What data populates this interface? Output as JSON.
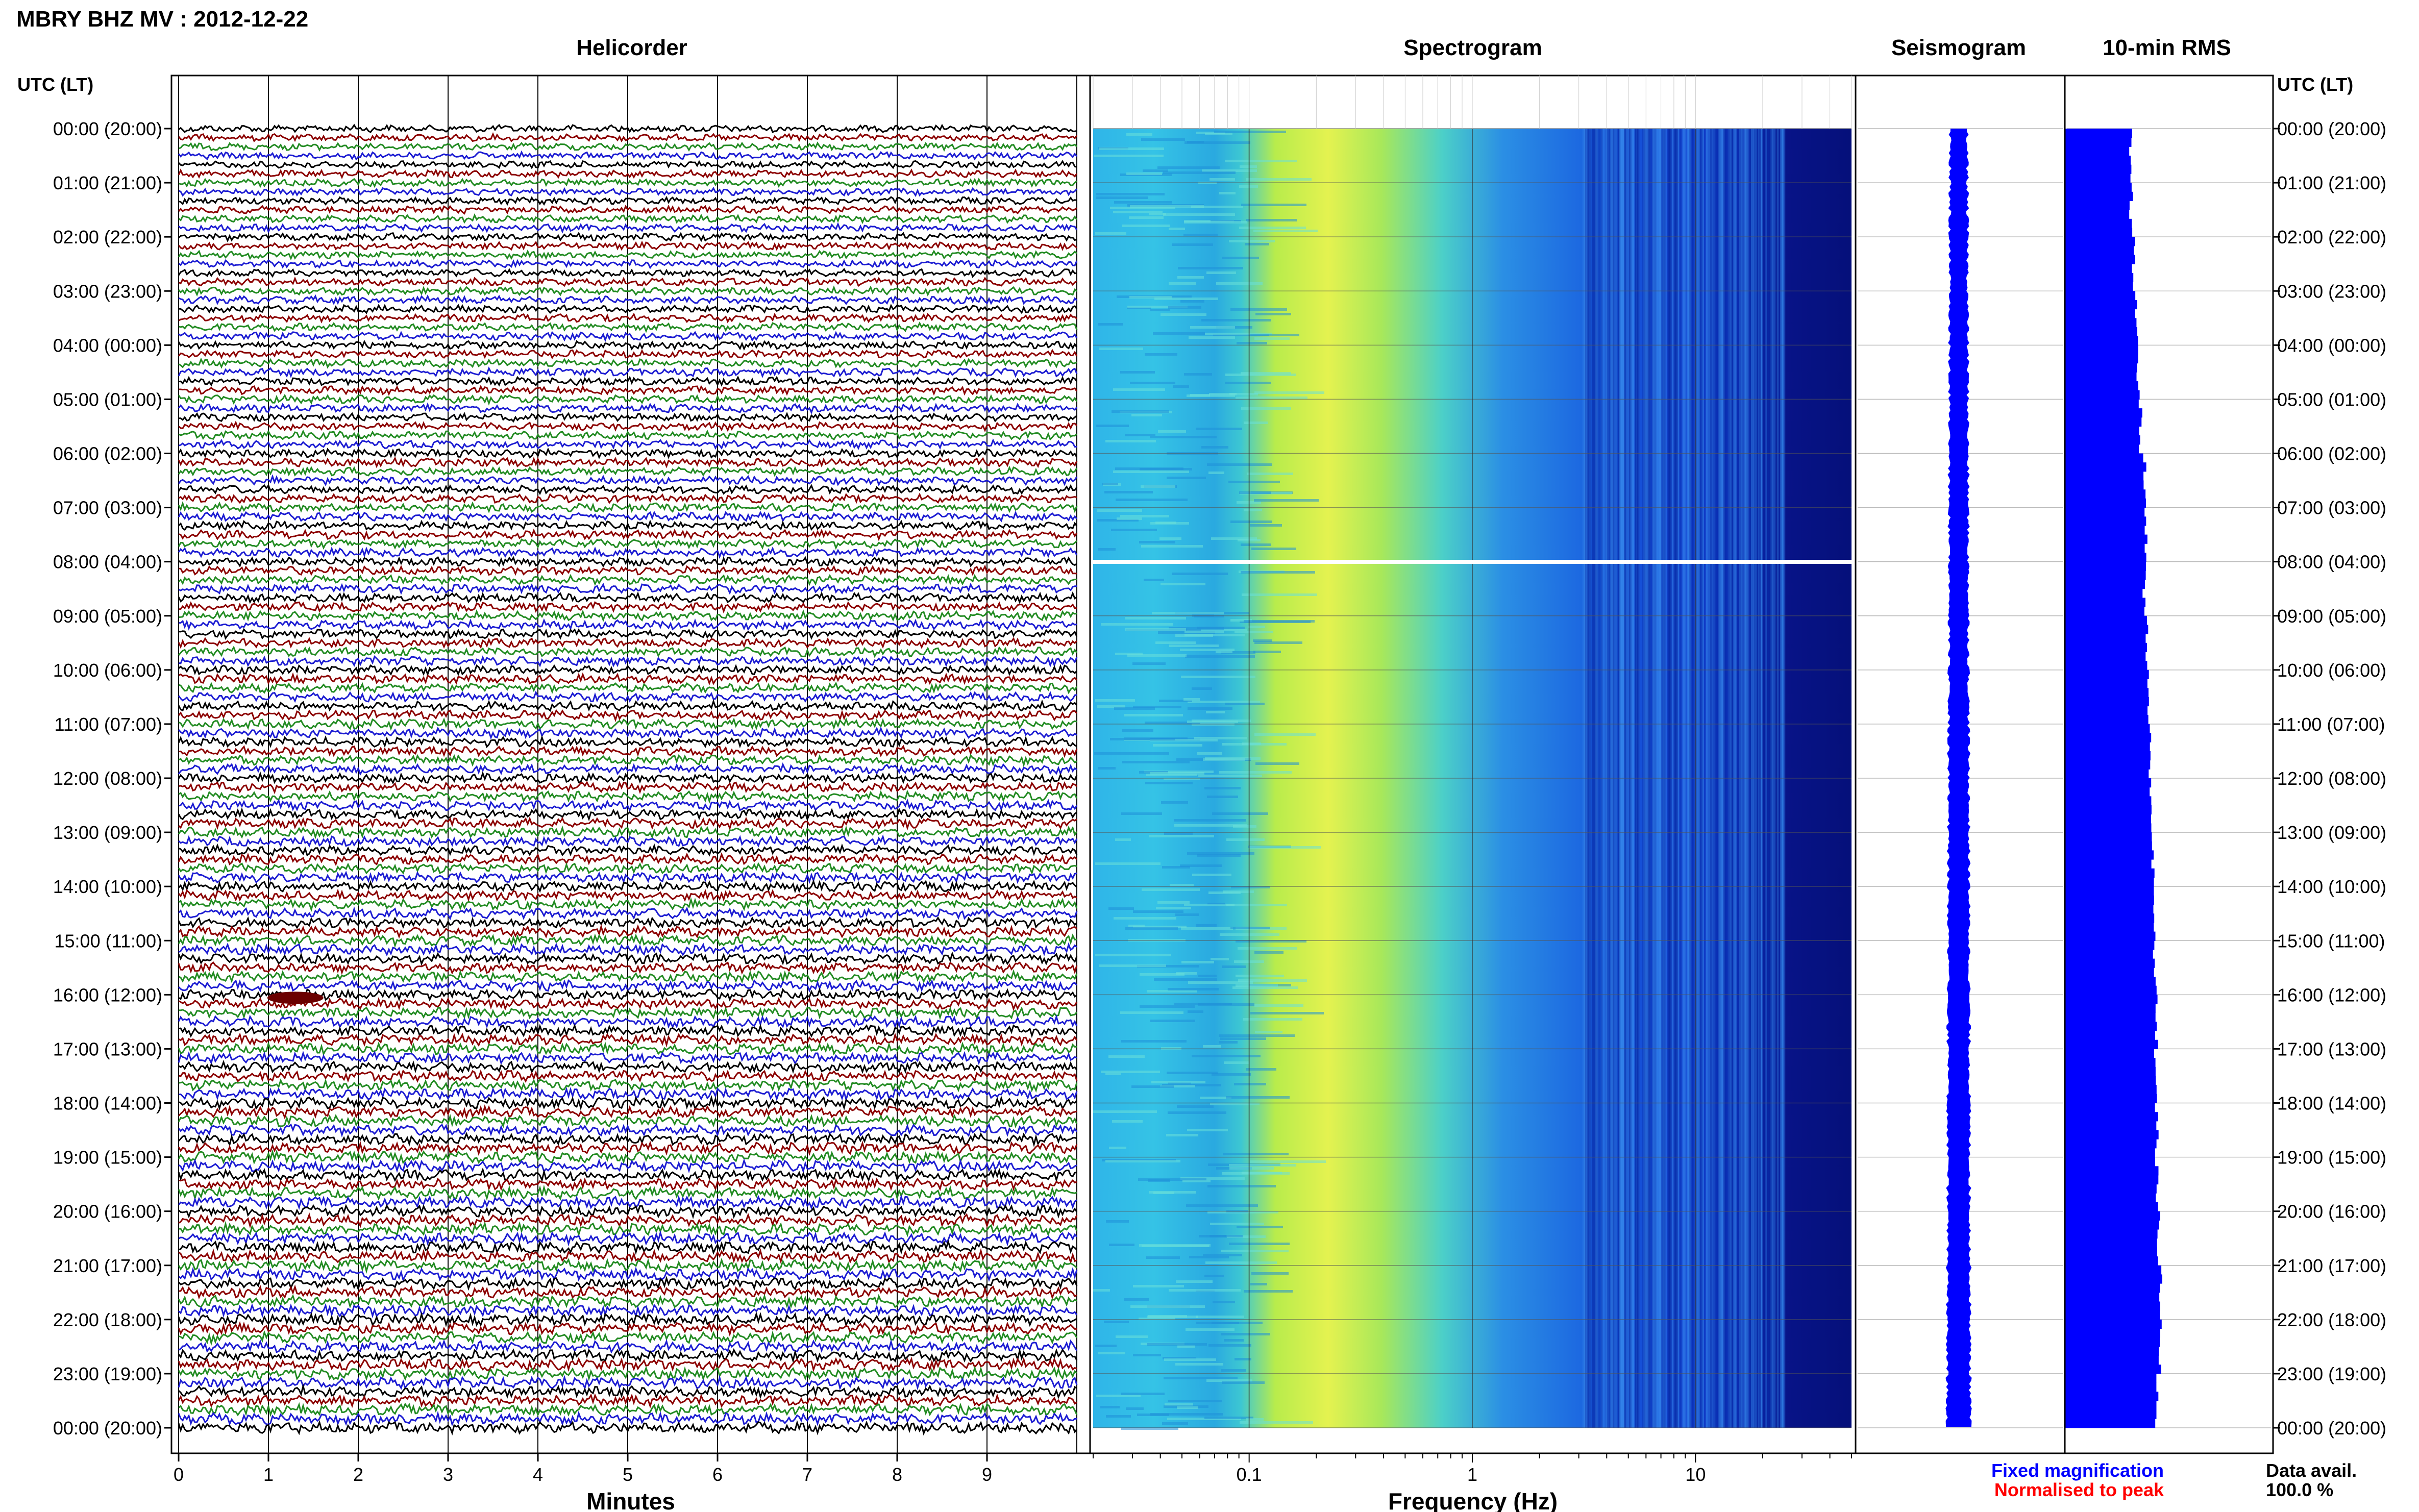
{
  "header": {
    "title": "MBRY BHZ MV : 2012-12-22",
    "utc_left": "UTC (LT)",
    "utc_right": "UTC (LT)"
  },
  "panels": {
    "helicorder": "Helicorder",
    "spectrogram": "Spectrogram",
    "seismogram": "Seismogram",
    "rms": "10-min RMS"
  },
  "axes": {
    "minutes_label": "Minutes",
    "frequency_label": "Frequency (Hz)"
  },
  "legend": {
    "fixed": "Fixed magnification",
    "normalised": "Normalised to peak",
    "data_avail_label": "Data avail.",
    "data_avail_value": "100.0 %"
  },
  "colors": {
    "trace_cycle": [
      "#000000",
      "#8b0000",
      "#228b22",
      "#1c1cd2"
    ],
    "rms_bar": "#0000ff",
    "seismogram": "#0000ff",
    "fixed_text": "#0000ff",
    "normalised_text": "#ff0000"
  },
  "chart_data": [
    {
      "type": "line",
      "title": "Helicorder",
      "xlabel": "Minutes",
      "x_ticks": [
        "0",
        "1",
        "2",
        "3",
        "4",
        "5",
        "6",
        "7",
        "8",
        "9"
      ],
      "xlim": [
        0,
        10
      ],
      "ylim_hours_utc": [
        0,
        24
      ],
      "lines_per_hour": 6,
      "y_tick_labels": [
        "00:00 (20:00)",
        "01:00 (21:00)",
        "02:00 (22:00)",
        "03:00 (23:00)",
        "04:00 (00:00)",
        "05:00 (01:00)",
        "06:00 (02:00)",
        "07:00 (03:00)",
        "08:00 (04:00)",
        "09:00 (05:00)",
        "10:00 (06:00)",
        "11:00 (07:00)",
        "12:00 (08:00)",
        "13:00 (09:00)",
        "14:00 (10:00)",
        "15:00 (11:00)",
        "16:00 (12:00)",
        "17:00 (13:00)",
        "18:00 (14:00)",
        "19:00 (15:00)",
        "20:00 (16:00)",
        "21:00 (17:00)",
        "22:00 (18:00)",
        "23:00 (19:00)",
        "00:00 (20:00)"
      ],
      "event": {
        "hour_utc": 16,
        "minute": 1.3
      }
    },
    {
      "type": "heatmap",
      "title": "Spectrogram",
      "xlabel": "Frequency (Hz)",
      "x_scale": "log",
      "xlim": [
        0.02,
        50
      ],
      "x_ticks": [
        "0.1",
        "1",
        "10"
      ],
      "gap_hour_utc": 8
    },
    {
      "type": "line",
      "title": "Seismogram",
      "ylim_hours_utc": [
        0,
        24
      ]
    },
    {
      "type": "bar",
      "title": "10-min RMS",
      "orientation": "horizontal",
      "hours_utc": [
        0,
        1,
        2,
        3,
        4,
        5,
        6,
        7,
        8,
        9,
        10,
        11,
        12,
        13,
        14,
        15,
        16,
        17,
        18,
        19,
        20,
        21,
        22,
        23
      ],
      "relative_values": [
        0.64,
        0.65,
        0.67,
        0.7,
        0.72,
        0.74,
        0.78,
        0.8,
        0.78,
        0.8,
        0.82,
        0.83,
        0.85,
        0.86,
        0.87,
        0.88,
        0.9,
        0.89,
        0.9,
        0.9,
        0.92,
        0.94,
        0.93,
        0.9
      ]
    }
  ]
}
